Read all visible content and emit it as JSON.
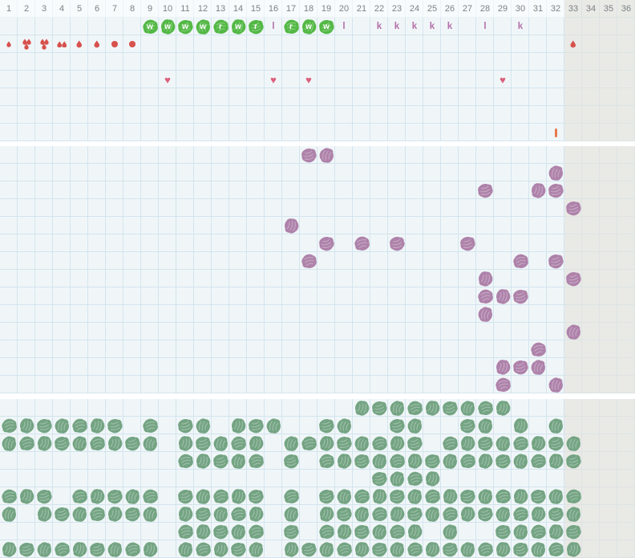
{
  "grid": {
    "columns": 36,
    "day_numbers": [
      "1",
      "2",
      "3",
      "4",
      "5",
      "6",
      "7",
      "8",
      "9",
      "10",
      "11",
      "12",
      "13",
      "14",
      "15",
      "16",
      "17",
      "18",
      "19",
      "20",
      "21",
      "22",
      "23",
      "24",
      "25",
      "26",
      "27",
      "28",
      "29",
      "30",
      "31",
      "32",
      "33",
      "34",
      "35",
      "36"
    ],
    "out_of_cycle_start_day": 33
  },
  "colors": {
    "background": "#f0f6f8",
    "grid_line": "#d3e4ee",
    "out_of_cycle_bg": "#e9eae6",
    "out_of_cycle_line": "#dde3e3",
    "divider": "#ffffff",
    "day_number_text": "#7c8185",
    "fluid_blob_green": "#53b845",
    "fluid_letter_on_blob": "#ffffff",
    "plain_letter": "#b46fa9",
    "bleeding_red": "#d7514d",
    "heart_pink": "#db5f7b",
    "note_orange": "#e7794b",
    "symptom_blob_purple": "#ae82aa",
    "activity_blob_green": "#74a483"
  },
  "calendar_section": {
    "rows": 8,
    "fluid_row_index": 1,
    "fluid_marks": [
      {
        "day": 9,
        "letter": "w",
        "blob": true
      },
      {
        "day": 10,
        "letter": "w",
        "blob": true
      },
      {
        "day": 11,
        "letter": "w",
        "blob": true
      },
      {
        "day": 12,
        "letter": "w",
        "blob": true
      },
      {
        "day": 13,
        "letter": "r",
        "blob": true
      },
      {
        "day": 14,
        "letter": "w",
        "blob": true
      },
      {
        "day": 15,
        "letter": "r",
        "blob": true
      },
      {
        "day": 16,
        "letter": "l",
        "blob": false
      },
      {
        "day": 17,
        "letter": "r",
        "blob": true
      },
      {
        "day": 18,
        "letter": "w",
        "blob": true
      },
      {
        "day": 19,
        "letter": "w",
        "blob": true
      },
      {
        "day": 20,
        "letter": "l",
        "blob": false
      },
      {
        "day": 22,
        "letter": "k",
        "blob": false
      },
      {
        "day": 23,
        "letter": "k",
        "blob": false
      },
      {
        "day": 24,
        "letter": "k",
        "blob": false
      },
      {
        "day": 25,
        "letter": "k",
        "blob": false
      },
      {
        "day": 26,
        "letter": "k",
        "blob": false
      },
      {
        "day": 28,
        "letter": "l",
        "blob": false
      },
      {
        "day": 30,
        "letter": "k",
        "blob": false
      }
    ],
    "bleeding_row_index": 2,
    "bleeding_marks": [
      {
        "day": 1,
        "kind": "drops",
        "count": 1,
        "small": true
      },
      {
        "day": 2,
        "kind": "drops",
        "count": 3
      },
      {
        "day": 3,
        "kind": "drops",
        "count": 3
      },
      {
        "day": 4,
        "kind": "drops",
        "count": 2
      },
      {
        "day": 5,
        "kind": "drops",
        "count": 1
      },
      {
        "day": 6,
        "kind": "drops",
        "count": 1
      },
      {
        "day": 7,
        "kind": "dot"
      },
      {
        "day": 8,
        "kind": "dot"
      },
      {
        "day": 33,
        "kind": "drops",
        "count": 1
      }
    ],
    "intercourse_row_index": 4,
    "intercourse_heart_days": [
      10,
      16,
      18,
      29
    ],
    "intercourse_heart_glyph": "♥",
    "note_row_index": 7,
    "note_marks": [
      {
        "day": 32
      }
    ]
  },
  "symptoms_section": {
    "rows": 14,
    "marks": [
      {
        "day": 18,
        "row": 0
      },
      {
        "day": 19,
        "row": 0
      },
      {
        "day": 32,
        "row": 1
      },
      {
        "day": 28,
        "row": 2
      },
      {
        "day": 31,
        "row": 2
      },
      {
        "day": 32,
        "row": 2
      },
      {
        "day": 33,
        "row": 3
      },
      {
        "day": 17,
        "row": 4
      },
      {
        "day": 19,
        "row": 5
      },
      {
        "day": 21,
        "row": 5
      },
      {
        "day": 23,
        "row": 5
      },
      {
        "day": 27,
        "row": 5
      },
      {
        "day": 18,
        "row": 6
      },
      {
        "day": 30,
        "row": 6
      },
      {
        "day": 32,
        "row": 6
      },
      {
        "day": 28,
        "row": 7
      },
      {
        "day": 33,
        "row": 7
      },
      {
        "day": 28,
        "row": 8
      },
      {
        "day": 29,
        "row": 8
      },
      {
        "day": 30,
        "row": 8
      },
      {
        "day": 28,
        "row": 9
      },
      {
        "day": 33,
        "row": 10
      },
      {
        "day": 31,
        "row": 11
      },
      {
        "day": 29,
        "row": 12
      },
      {
        "day": 30,
        "row": 12
      },
      {
        "day": 31,
        "row": 12
      },
      {
        "day": 29,
        "row": 13
      },
      {
        "day": 32,
        "row": 13
      }
    ]
  },
  "activity_section": {
    "rows": 9,
    "rows_days": [
      [
        21,
        22,
        23,
        24,
        25,
        26,
        27,
        28,
        29
      ],
      [
        1,
        2,
        3,
        4,
        5,
        6,
        7,
        9,
        11,
        12,
        14,
        15,
        16,
        19,
        20,
        23,
        24,
        27,
        28,
        30,
        32
      ],
      [
        1,
        2,
        3,
        4,
        5,
        6,
        7,
        8,
        9,
        11,
        12,
        13,
        14,
        15,
        17,
        18,
        19,
        20,
        21,
        22,
        23,
        24,
        26,
        27,
        28,
        29,
        30,
        31,
        32,
        33
      ],
      [
        11,
        12,
        13,
        14,
        15,
        17,
        19,
        20,
        21,
        22,
        23,
        24,
        25,
        26,
        27,
        28,
        29,
        30,
        31,
        32,
        33
      ],
      [
        22,
        23,
        24,
        25
      ],
      [
        1,
        2,
        3,
        5,
        6,
        7,
        8,
        9,
        11,
        12,
        13,
        14,
        15,
        17,
        19,
        20,
        21,
        22,
        23,
        24,
        25,
        26,
        27,
        28,
        29,
        30,
        31,
        32,
        33
      ],
      [
        1,
        3,
        4,
        5,
        6,
        7,
        8,
        9,
        11,
        12,
        13,
        14,
        15,
        17,
        19,
        20,
        21,
        22,
        23,
        24,
        25,
        26,
        27,
        28,
        29,
        30,
        31,
        32,
        33
      ],
      [
        11,
        12,
        13,
        14,
        15,
        17,
        19,
        20,
        21,
        22,
        23,
        24,
        26,
        29,
        30,
        31,
        32,
        33
      ],
      [
        1,
        2,
        3,
        4,
        5,
        6,
        7,
        8,
        9,
        11,
        12,
        13,
        14,
        15,
        17,
        18,
        19,
        20,
        21,
        22,
        23,
        24,
        25,
        26,
        27,
        28,
        29,
        30,
        31,
        32,
        33
      ]
    ]
  }
}
